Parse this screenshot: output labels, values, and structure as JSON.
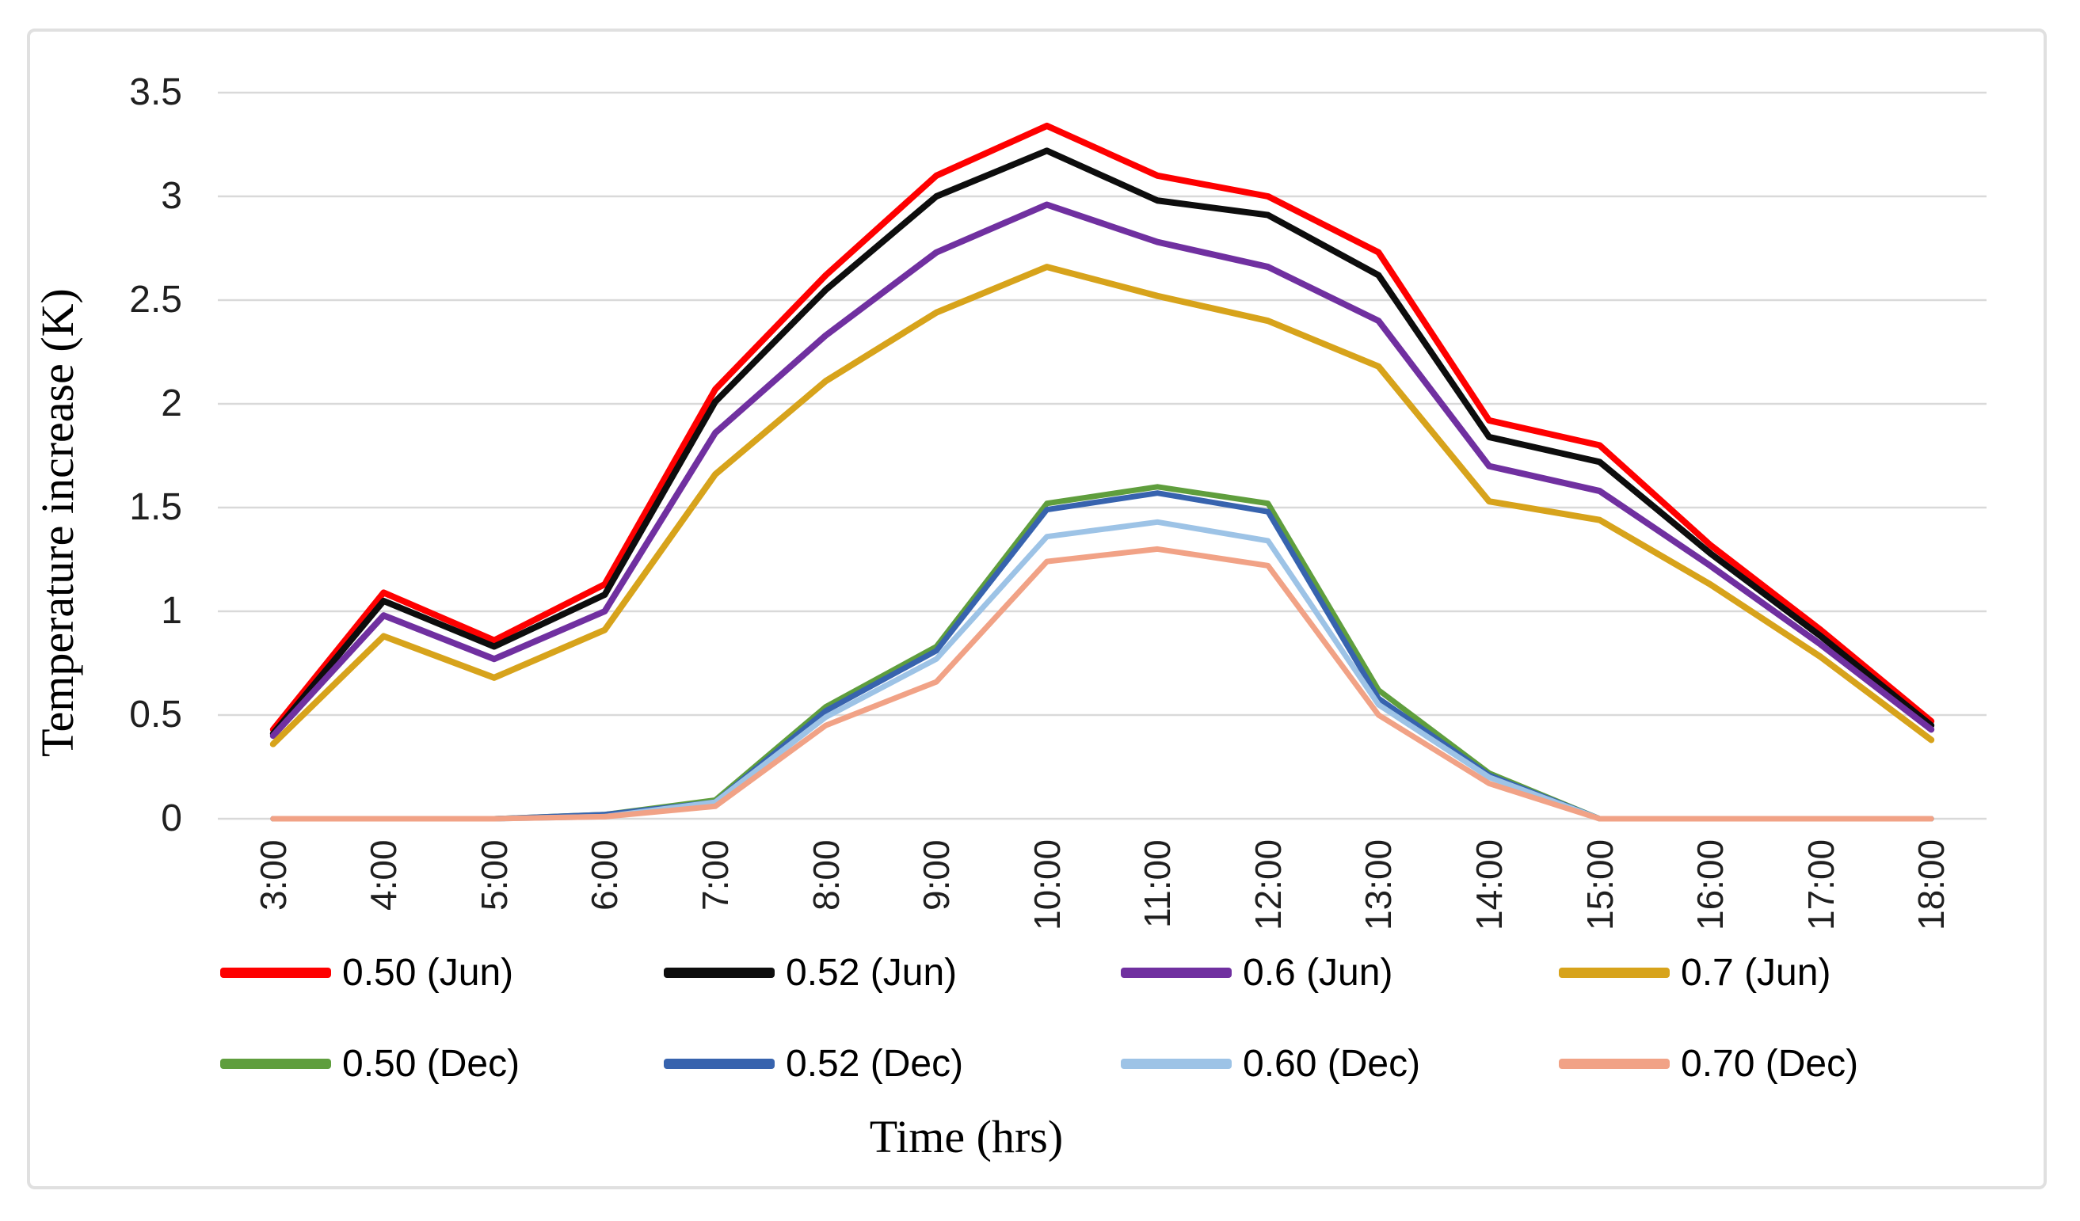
{
  "chart_data": {
    "type": "line",
    "title": "",
    "xlabel": "Time (hrs)",
    "ylabel": "Temperature increase (K)",
    "categories": [
      "3:00",
      "4:00",
      "5:00",
      "6:00",
      "7:00",
      "8:00",
      "9:00",
      "10:00",
      "11:00",
      "12:00",
      "13:00",
      "14:00",
      "15:00",
      "16:00",
      "17:00",
      "18:00"
    ],
    "y_ticks": [
      "0",
      "0.5",
      "1",
      "1.5",
      "2",
      "2.5",
      "3",
      "3.5"
    ],
    "ylim": [
      0,
      3.5
    ],
    "grid": "horizontal",
    "gridline_color": "#d9d9d9",
    "legend_position": "bottom",
    "series": [
      {
        "name": "0.50 (Jun)",
        "color": "#fe0000",
        "values": [
          0.43,
          1.09,
          0.86,
          1.13,
          2.07,
          2.62,
          3.1,
          3.34,
          3.1,
          3.0,
          2.73,
          1.92,
          1.8,
          1.32,
          0.91,
          0.47
        ]
      },
      {
        "name": "0.52 (Jun)",
        "color": "#0d0d0d",
        "values": [
          0.41,
          1.05,
          0.83,
          1.08,
          2.01,
          2.55,
          3.0,
          3.22,
          2.98,
          2.91,
          2.62,
          1.84,
          1.72,
          1.28,
          0.88,
          0.45
        ]
      },
      {
        "name": "0.6 (Jun)",
        "color": "#7030a0",
        "values": [
          0.4,
          0.98,
          0.77,
          1.0,
          1.86,
          2.33,
          2.73,
          2.96,
          2.78,
          2.66,
          2.4,
          1.7,
          1.58,
          1.22,
          0.84,
          0.43
        ]
      },
      {
        "name": "0.7 (Jun)",
        "color": "#d7a31b",
        "values": [
          0.36,
          0.88,
          0.68,
          0.91,
          1.66,
          2.11,
          2.44,
          2.66,
          2.52,
          2.4,
          2.18,
          1.53,
          1.44,
          1.13,
          0.78,
          0.38
        ]
      },
      {
        "name": "0.50 (Dec)",
        "color": "#5f9e3d",
        "values": [
          0,
          0,
          0,
          0.02,
          0.09,
          0.54,
          0.83,
          1.52,
          1.6,
          1.52,
          0.62,
          0.22,
          0,
          0,
          0,
          0
        ]
      },
      {
        "name": "0.52 (Dec)",
        "color": "#3763ae",
        "values": [
          0,
          0,
          0,
          0.02,
          0.08,
          0.52,
          0.81,
          1.49,
          1.57,
          1.48,
          0.58,
          0.21,
          0,
          0,
          0,
          0
        ]
      },
      {
        "name": "0.60 (Dec)",
        "color": "#9dc3e6",
        "values": [
          0,
          0,
          0,
          0.01,
          0.08,
          0.49,
          0.77,
          1.36,
          1.43,
          1.34,
          0.55,
          0.2,
          0,
          0,
          0,
          0
        ]
      },
      {
        "name": "0.70 (Dec)",
        "color": "#f1a286",
        "values": [
          0,
          0,
          0,
          0.01,
          0.06,
          0.45,
          0.66,
          1.24,
          1.3,
          1.22,
          0.5,
          0.17,
          0,
          0,
          0,
          0
        ]
      }
    ]
  }
}
